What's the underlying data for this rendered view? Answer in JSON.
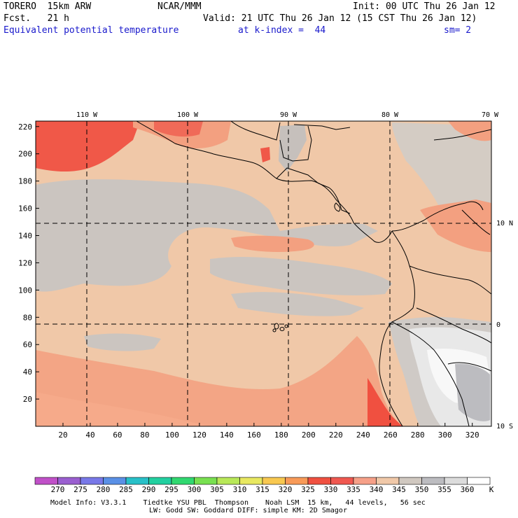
{
  "header": {
    "model": "TORERO  15km ARW",
    "center": "NCAR/MMM",
    "init": "Init: 00 UTC Thu 26 Jan 12",
    "fcst": "Fcst.   21 h",
    "valid": "Valid: 21 UTC Thu 26 Jan 12 (15 CST Thu 26 Jan 12)",
    "field": "Equivalent potential temperature",
    "level": "at k-index =  44",
    "smooth": "sm= 2"
  },
  "map": {
    "lon_labels": [
      "110 W",
      "100 W",
      "90 W",
      "80 W",
      "70 W"
    ],
    "lat_labels": [
      "10 N",
      "0",
      "10 S"
    ],
    "x_ticks": [
      "20",
      "40",
      "60",
      "80",
      "100",
      "120",
      "140",
      "160",
      "180",
      "200",
      "220",
      "240",
      "260",
      "280",
      "300",
      "320"
    ],
    "y_ticks": [
      "220",
      "200",
      "180",
      "160",
      "140",
      "120",
      "100",
      "80",
      "60",
      "40",
      "20"
    ]
  },
  "colorbar": {
    "labels": [
      "270",
      "275",
      "280",
      "285",
      "290",
      "295",
      "300",
      "305",
      "310",
      "315",
      "320",
      "325",
      "330",
      "335",
      "340",
      "345",
      "350",
      "355",
      "360",
      "K"
    ],
    "colors": [
      "#c050c8",
      "#9a5fd0",
      "#7878e8",
      "#5a90e6",
      "#28c0c8",
      "#22d0a0",
      "#30d870",
      "#78e050",
      "#b8e858",
      "#e8e860",
      "#f8c850",
      "#f89a58",
      "#f05040",
      "#f05850",
      "#f6a088",
      "#f0c8a8",
      "#d0c8c0",
      "#bcbcc0",
      "#dcdcdc",
      "#ffffff"
    ]
  },
  "footer": {
    "line1": "Model Info: V3.3.1    Tiedtke YSU PBL  Thompson    Noah LSM  15 km,   44 levels,   56 sec",
    "line2": "LW: Godd SW: Goddard DIFF: simple KM: 2D Smagor"
  }
}
